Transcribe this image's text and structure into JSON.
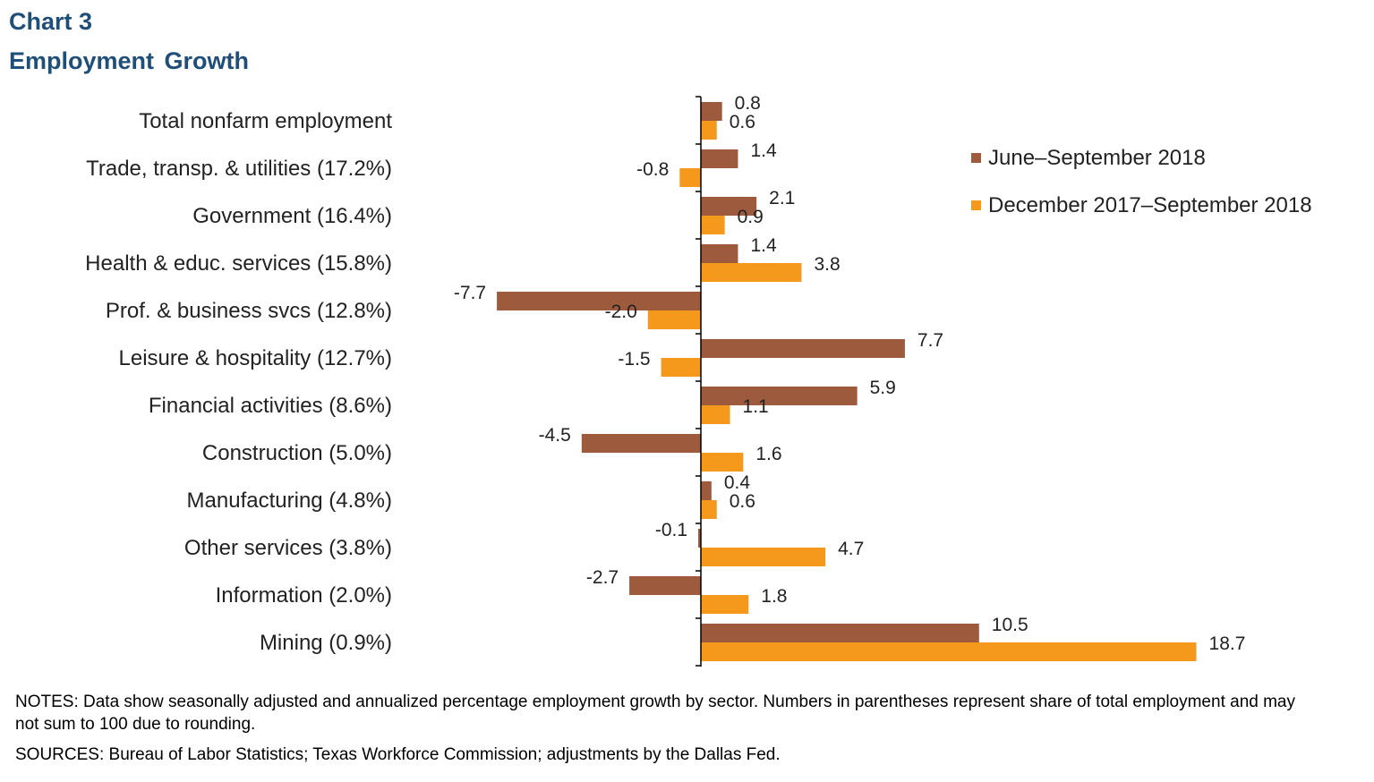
{
  "header": {
    "label": "Chart 3",
    "title": "Employment  Growth"
  },
  "chart_data": {
    "type": "bar",
    "orientation": "horizontal",
    "categories": [
      "Total nonfarm employment",
      "Trade, transp. & utilities (17.2%)",
      "Government (16.4%)",
      "Health & educ. services (15.8%)",
      "Prof. & business svcs (12.8%)",
      "Leisure & hospitality (12.7%)",
      "Financial activities (8.6%)",
      "Construction (5.0%)",
      "Manufacturing (4.8%)",
      "Other services (3.8%)",
      "Information (2.0%)",
      "Mining (0.9%)"
    ],
    "series": [
      {
        "name": "June–September 2018",
        "color": "#9e5a3c",
        "values": [
          0.8,
          1.4,
          2.1,
          1.4,
          -7.7,
          7.7,
          5.9,
          -4.5,
          0.4,
          -0.1,
          -2.7,
          10.5
        ],
        "labels": [
          "0.8",
          "1.4",
          "2.1",
          "1.4",
          "-7.7",
          "7.7",
          "5.9",
          "-4.5",
          "0.4",
          "-0.1",
          "-2.7",
          "10.5"
        ]
      },
      {
        "name": "December 2017–September 2018",
        "color": "#f5991c",
        "values": [
          0.6,
          -0.8,
          0.9,
          3.8,
          -2.0,
          -1.5,
          1.1,
          1.6,
          0.6,
          4.7,
          1.8,
          18.7
        ],
        "labels": [
          "0.6",
          "-0.8",
          "0.9",
          "3.8",
          "-2.0",
          "-1.5",
          "1.1",
          "1.6",
          "0.6",
          "4.7",
          "1.8",
          "18.7"
        ]
      }
    ],
    "xlim": [
      -7.7,
      18.7
    ],
    "grid": false,
    "legend_position": "top-right"
  },
  "footer": {
    "notes": "NOTES: Data show seasonally adjusted and annualized percentage employment growth by sector. Numbers in parentheses represent share of total employment and may not sum to 100 due to rounding.",
    "sources": "SOURCES: Bureau of Labor Statistics; Texas Workforce Commission; adjustments by the Dallas Fed."
  }
}
